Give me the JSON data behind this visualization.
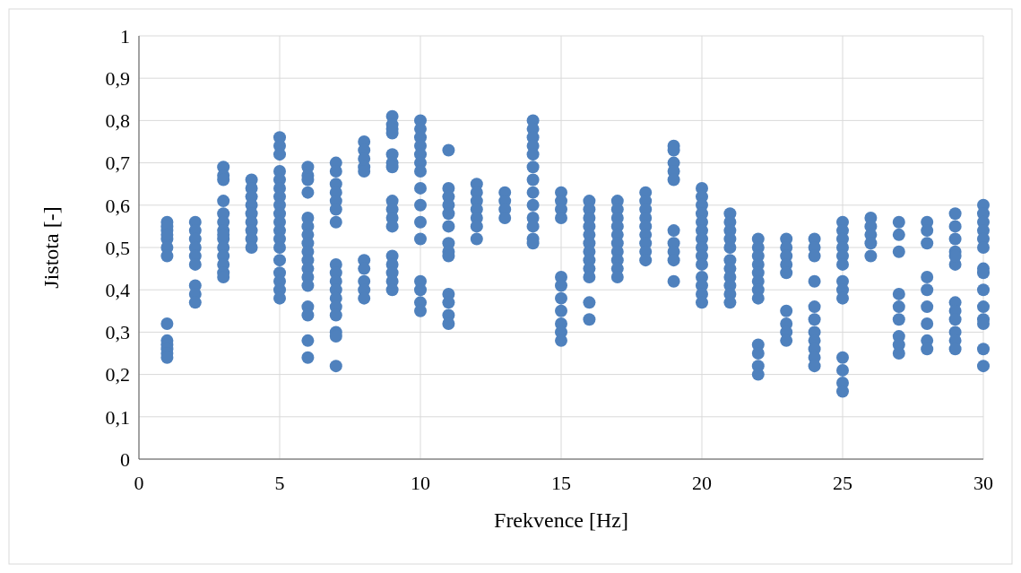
{
  "chart_data": {
    "type": "scatter",
    "xlabel": "Frekvence [Hz]",
    "ylabel": "Jistota [-]",
    "xlim": [
      0,
      30
    ],
    "xticks": [
      0,
      5,
      10,
      15,
      20,
      25,
      30
    ],
    "ylim": [
      0,
      1
    ],
    "yticks": [
      0,
      {
        "value": 0.1,
        "label": "0,1"
      },
      {
        "value": 0.2,
        "label": "0,2"
      },
      {
        "value": 0.3,
        "label": "0,3"
      },
      {
        "value": 0.4,
        "label": "0,4"
      },
      {
        "value": 0.5,
        "label": "0,5"
      },
      {
        "value": 0.6,
        "label": "0,6"
      },
      {
        "value": 0.7,
        "label": "0,7"
      },
      {
        "value": 0.8,
        "label": "0,8"
      },
      {
        "value": 0.9,
        "label": "0,9"
      },
      1
    ],
    "grid": true,
    "marker": "circle",
    "series": [
      {
        "color": "#4f81bd",
        "x": [
          1,
          1,
          1,
          1,
          1,
          1,
          1,
          1,
          1,
          1,
          1,
          1,
          1,
          2,
          2,
          2,
          2,
          2,
          2,
          2,
          2,
          2,
          3,
          3,
          3,
          3,
          3,
          3,
          3,
          3,
          3,
          3,
          3,
          3,
          3,
          3,
          4,
          4,
          4,
          4,
          4,
          4,
          4,
          4,
          4,
          5,
          5,
          5,
          5,
          5,
          5,
          5,
          5,
          5,
          5,
          5,
          5,
          5,
          5,
          5,
          5,
          5,
          5,
          6,
          6,
          6,
          6,
          6,
          6,
          6,
          6,
          6,
          6,
          6,
          6,
          6,
          6,
          6,
          6,
          6,
          7,
          7,
          7,
          7,
          7,
          7,
          7,
          7,
          7,
          7,
          7,
          7,
          7,
          7,
          7,
          7,
          7,
          8,
          8,
          8,
          8,
          8,
          8,
          8,
          8,
          8,
          8,
          9,
          9,
          9,
          9,
          9,
          9,
          9,
          9,
          9,
          9,
          9,
          9,
          9,
          9,
          9,
          9,
          10,
          10,
          10,
          10,
          10,
          10,
          10,
          10,
          10,
          10,
          10,
          10,
          10,
          10,
          10,
          11,
          11,
          11,
          11,
          11,
          11,
          11,
          11,
          11,
          11,
          11,
          11,
          11,
          12,
          12,
          12,
          12,
          12,
          12,
          12,
          13,
          13,
          13,
          13,
          14,
          14,
          14,
          14,
          14,
          14,
          14,
          14,
          14,
          14,
          14,
          14,
          14,
          15,
          15,
          15,
          15,
          15,
          15,
          15,
          15,
          15,
          15,
          15,
          16,
          16,
          16,
          16,
          16,
          16,
          16,
          16,
          16,
          16,
          16,
          16,
          17,
          17,
          17,
          17,
          17,
          17,
          17,
          17,
          17,
          17,
          18,
          18,
          18,
          18,
          18,
          18,
          18,
          18,
          18,
          19,
          19,
          19,
          19,
          19,
          19,
          19,
          19,
          19,
          19,
          20,
          20,
          20,
          20,
          20,
          20,
          20,
          20,
          20,
          20,
          20,
          20,
          20,
          20,
          21,
          21,
          21,
          21,
          21,
          21,
          21,
          21,
          21,
          21,
          21,
          22,
          22,
          22,
          22,
          22,
          22,
          22,
          22,
          22,
          22,
          22,
          22,
          23,
          23,
          23,
          23,
          23,
          23,
          23,
          23,
          23,
          24,
          24,
          24,
          24,
          24,
          24,
          24,
          24,
          24,
          24,
          24,
          25,
          25,
          25,
          25,
          25,
          25,
          25,
          25,
          25,
          25,
          25,
          25,
          25,
          26,
          26,
          26,
          26,
          26,
          27,
          27,
          27,
          27,
          27,
          27,
          27,
          27,
          27,
          28,
          28,
          28,
          28,
          28,
          28,
          28,
          28,
          28,
          29,
          29,
          29,
          29,
          29,
          29,
          29,
          29,
          29,
          29,
          29,
          29,
          30,
          30,
          30,
          30,
          30,
          30,
          30,
          30,
          30,
          30,
          30,
          30,
          30,
          30
        ],
        "values": [
          0.56,
          0.54,
          0.52,
          0.5,
          0.48,
          0.32,
          0.28,
          0.27,
          0.26,
          0.25,
          0.24,
          0.55,
          0.53,
          0.56,
          0.54,
          0.52,
          0.5,
          0.48,
          0.46,
          0.41,
          0.39,
          0.37,
          0.69,
          0.67,
          0.66,
          0.61,
          0.58,
          0.56,
          0.54,
          0.52,
          0.5,
          0.48,
          0.46,
          0.44,
          0.43,
          0.53,
          0.66,
          0.64,
          0.62,
          0.6,
          0.58,
          0.56,
          0.54,
          0.52,
          0.5,
          0.76,
          0.74,
          0.72,
          0.68,
          0.66,
          0.64,
          0.62,
          0.6,
          0.58,
          0.56,
          0.54,
          0.52,
          0.5,
          0.47,
          0.44,
          0.42,
          0.4,
          0.38,
          0.69,
          0.67,
          0.66,
          0.63,
          0.57,
          0.55,
          0.53,
          0.51,
          0.49,
          0.47,
          0.45,
          0.43,
          0.41,
          0.36,
          0.34,
          0.28,
          0.24,
          0.7,
          0.68,
          0.65,
          0.63,
          0.61,
          0.59,
          0.56,
          0.46,
          0.44,
          0.42,
          0.4,
          0.38,
          0.36,
          0.34,
          0.3,
          0.29,
          0.22,
          0.75,
          0.73,
          0.71,
          0.69,
          0.68,
          0.47,
          0.45,
          0.42,
          0.4,
          0.38,
          0.81,
          0.79,
          0.78,
          0.77,
          0.72,
          0.7,
          0.69,
          0.61,
          0.59,
          0.57,
          0.55,
          0.48,
          0.46,
          0.44,
          0.42,
          0.4,
          0.8,
          0.78,
          0.76,
          0.74,
          0.72,
          0.7,
          0.68,
          0.64,
          0.6,
          0.56,
          0.52,
          0.42,
          0.4,
          0.37,
          0.35,
          0.73,
          0.64,
          0.62,
          0.6,
          0.58,
          0.55,
          0.51,
          0.49,
          0.48,
          0.39,
          0.37,
          0.34,
          0.32,
          0.65,
          0.63,
          0.61,
          0.59,
          0.57,
          0.55,
          0.52,
          0.63,
          0.61,
          0.59,
          0.57,
          0.8,
          0.78,
          0.76,
          0.74,
          0.72,
          0.69,
          0.66,
          0.63,
          0.6,
          0.57,
          0.55,
          0.52,
          0.51,
          0.63,
          0.61,
          0.59,
          0.57,
          0.43,
          0.41,
          0.38,
          0.35,
          0.32,
          0.3,
          0.28,
          0.61,
          0.59,
          0.57,
          0.55,
          0.53,
          0.51,
          0.49,
          0.47,
          0.45,
          0.43,
          0.37,
          0.33,
          0.61,
          0.59,
          0.57,
          0.55,
          0.53,
          0.51,
          0.49,
          0.47,
          0.45,
          0.43,
          0.63,
          0.61,
          0.59,
          0.57,
          0.55,
          0.53,
          0.51,
          0.49,
          0.47,
          0.74,
          0.73,
          0.7,
          0.68,
          0.66,
          0.54,
          0.51,
          0.49,
          0.47,
          0.42,
          0.64,
          0.62,
          0.6,
          0.58,
          0.56,
          0.54,
          0.52,
          0.5,
          0.48,
          0.46,
          0.43,
          0.41,
          0.39,
          0.37,
          0.58,
          0.56,
          0.54,
          0.52,
          0.5,
          0.47,
          0.45,
          0.43,
          0.41,
          0.39,
          0.37,
          0.52,
          0.5,
          0.48,
          0.46,
          0.44,
          0.42,
          0.4,
          0.38,
          0.27,
          0.25,
          0.22,
          0.2,
          0.52,
          0.5,
          0.48,
          0.46,
          0.44,
          0.35,
          0.32,
          0.3,
          0.28,
          0.52,
          0.5,
          0.48,
          0.42,
          0.36,
          0.33,
          0.3,
          0.28,
          0.26,
          0.24,
          0.22,
          0.56,
          0.54,
          0.52,
          0.5,
          0.48,
          0.46,
          0.42,
          0.4,
          0.38,
          0.24,
          0.21,
          0.18,
          0.16,
          0.57,
          0.55,
          0.53,
          0.51,
          0.48,
          0.56,
          0.53,
          0.49,
          0.39,
          0.36,
          0.33,
          0.29,
          0.27,
          0.25,
          0.56,
          0.54,
          0.51,
          0.43,
          0.4,
          0.36,
          0.32,
          0.28,
          0.26,
          0.58,
          0.55,
          0.52,
          0.49,
          0.46,
          0.37,
          0.35,
          0.33,
          0.3,
          0.28,
          0.26,
          0.48,
          0.6,
          0.58,
          0.56,
          0.54,
          0.52,
          0.5,
          0.45,
          0.44,
          0.4,
          0.36,
          0.33,
          0.32,
          0.26,
          0.22
        ]
      }
    ]
  }
}
